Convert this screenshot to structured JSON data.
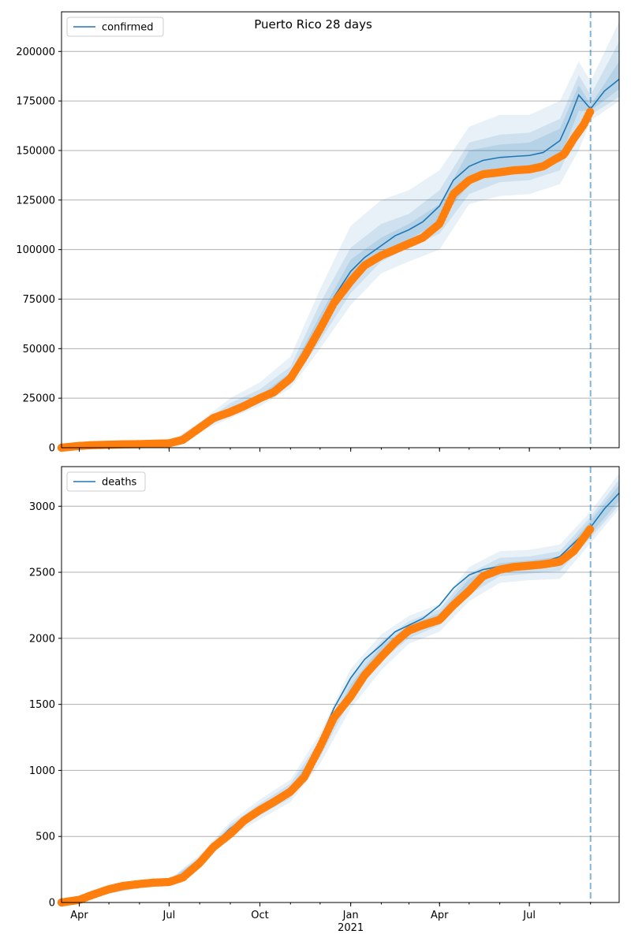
{
  "figure": {
    "title": "Puerto Rico 28 days"
  },
  "colors": {
    "model_line": "#1f77b4",
    "observed_points": "#ff7f0e",
    "band": "#1f77b4",
    "grid": "#b0b0b0",
    "forecast_divider": "#1f77b4"
  },
  "chart_data": [
    {
      "type": "line",
      "title": "Puerto Rico 28 days",
      "xlabel": "",
      "ylabel": "",
      "legend": {
        "placement": "top-left",
        "entries": [
          "confirmed"
        ]
      },
      "grid": {
        "y": true,
        "x": false
      },
      "x_range": [
        "2020-03-14",
        "2021-09-30"
      ],
      "ylim": [
        0,
        220000
      ],
      "yticks": [
        0,
        25000,
        50000,
        75000,
        100000,
        125000,
        150000,
        175000,
        200000
      ],
      "ytick_labels": [
        "0",
        "25000",
        "50000",
        "75000",
        "100000",
        "125000",
        "150000",
        "175000",
        "200000"
      ],
      "forecast_start": "2021-09-01",
      "series": [
        {
          "name": "confirmed",
          "kind": "model",
          "x": [
            "2020-03-14",
            "2020-04-01",
            "2020-05-01",
            "2020-06-01",
            "2020-07-01",
            "2020-07-15",
            "2020-08-01",
            "2020-08-15",
            "2020-09-01",
            "2020-09-15",
            "2020-10-01",
            "2020-10-15",
            "2020-11-01",
            "2020-11-15",
            "2020-12-01",
            "2020-12-15",
            "2021-01-01",
            "2021-01-15",
            "2021-02-01",
            "2021-02-15",
            "2021-03-01",
            "2021-03-15",
            "2021-04-01",
            "2021-04-15",
            "2021-05-01",
            "2021-05-15",
            "2021-06-01",
            "2021-06-15",
            "2021-07-01",
            "2021-07-15",
            "2021-08-01",
            "2021-08-10",
            "2021-08-20",
            "2021-09-01",
            "2021-09-15",
            "2021-09-30"
          ],
          "values": [
            0,
            1000,
            1500,
            1800,
            2200,
            4000,
            10000,
            15000,
            19000,
            22000,
            25000,
            29000,
            36000,
            46000,
            61000,
            76000,
            89000,
            96000,
            102000,
            107000,
            110000,
            114000,
            122000,
            135000,
            142000,
            145000,
            146500,
            147000,
            147500,
            149000,
            155000,
            165000,
            178000,
            171000,
            180000,
            186000
          ]
        },
        {
          "name": "confirmed observed",
          "kind": "observed",
          "x": [
            "2020-03-14",
            "2020-04-01",
            "2020-04-15",
            "2020-05-01",
            "2020-05-15",
            "2020-06-01",
            "2020-06-15",
            "2020-07-01",
            "2020-07-15",
            "2020-08-01",
            "2020-08-15",
            "2020-09-01",
            "2020-09-15",
            "2020-10-01",
            "2020-10-15",
            "2020-11-01",
            "2020-11-15",
            "2020-12-01",
            "2020-12-15",
            "2021-01-01",
            "2021-01-15",
            "2021-02-01",
            "2021-02-15",
            "2021-03-01",
            "2021-03-15",
            "2021-04-01",
            "2021-04-15",
            "2021-05-01",
            "2021-05-15",
            "2021-06-01",
            "2021-06-15",
            "2021-07-01",
            "2021-07-15",
            "2021-07-25",
            "2021-08-05",
            "2021-08-15",
            "2021-08-25",
            "2021-09-01"
          ],
          "values": [
            0,
            900,
            1300,
            1500,
            1700,
            1800,
            2000,
            2200,
            4000,
            10000,
            15000,
            18000,
            21000,
            25000,
            28000,
            35000,
            46000,
            60000,
            73000,
            84000,
            92000,
            97000,
            100000,
            103000,
            106000,
            113000,
            128000,
            135000,
            138000,
            139000,
            140000,
            140500,
            142000,
            145000,
            148000,
            156000,
            163000,
            170000
          ]
        }
      ],
      "bands": [
        {
          "x": [
            "2020-03-14",
            "2020-07-01",
            "2020-08-01",
            "2020-09-01",
            "2020-10-01",
            "2020-11-01",
            "2020-12-01",
            "2021-01-01",
            "2021-02-01",
            "2021-03-01",
            "2021-04-01",
            "2021-05-01",
            "2021-06-01",
            "2021-07-01",
            "2021-08-01",
            "2021-08-20",
            "2021-09-01",
            "2021-09-30"
          ],
          "lower": [
            0,
            1800,
            8000,
            15000,
            21000,
            30000,
            50000,
            72000,
            88000,
            94000,
            100000,
            123000,
            127000,
            128000,
            133000,
            150000,
            165000,
            175000
          ],
          "upper": [
            0,
            2600,
            13000,
            25000,
            33000,
            46000,
            80000,
            112000,
            125000,
            130000,
            140000,
            162000,
            168000,
            168000,
            175000,
            195000,
            185000,
            215000
          ]
        },
        {
          "x": [
            "2020-03-14",
            "2020-07-01",
            "2020-08-01",
            "2020-09-01",
            "2020-10-01",
            "2020-11-01",
            "2020-12-01",
            "2021-01-01",
            "2021-02-01",
            "2021-03-01",
            "2021-04-01",
            "2021-05-01",
            "2021-06-01",
            "2021-07-01",
            "2021-08-01",
            "2021-08-20",
            "2021-09-01",
            "2021-09-30"
          ],
          "lower": [
            0,
            1900,
            8800,
            16500,
            22500,
            32000,
            54000,
            78000,
            94000,
            101000,
            108000,
            128000,
            134000,
            135000,
            140000,
            160000,
            168000,
            177000
          ],
          "upper": [
            0,
            2500,
            11800,
            22500,
            29500,
            41000,
            73000,
            101000,
            113000,
            118000,
            130000,
            154000,
            158000,
            159000,
            166000,
            188000,
            178000,
            205000
          ]
        },
        {
          "x": [
            "2020-03-14",
            "2020-07-01",
            "2020-08-01",
            "2020-09-01",
            "2020-10-01",
            "2020-11-01",
            "2020-12-01",
            "2021-01-01",
            "2021-02-01",
            "2021-03-01",
            "2021-04-01",
            "2021-05-01",
            "2021-06-01",
            "2021-07-01",
            "2021-08-01",
            "2021-08-20",
            "2021-09-01",
            "2021-09-30"
          ],
          "lower": [
            0,
            2000,
            9400,
            17700,
            23800,
            34000,
            57000,
            84000,
            98000,
            105000,
            114000,
            133000,
            140000,
            141000,
            146000,
            170000,
            170000,
            181000
          ],
          "upper": [
            0,
            2400,
            10800,
            20500,
            26500,
            38000,
            67000,
            95000,
            106000,
            113000,
            123000,
            150000,
            153000,
            154000,
            161000,
            183000,
            173000,
            195000
          ]
        }
      ]
    },
    {
      "type": "line",
      "title": "",
      "xlabel": "",
      "ylabel": "",
      "legend": {
        "placement": "top-left",
        "entries": [
          "deaths"
        ]
      },
      "grid": {
        "y": true,
        "x": false
      },
      "x_range": [
        "2020-03-14",
        "2021-09-30"
      ],
      "ylim": [
        0,
        3300
      ],
      "yticks": [
        0,
        500,
        1000,
        1500,
        2000,
        2500,
        3000
      ],
      "ytick_labels": [
        "0",
        "500",
        "1000",
        "1500",
        "2000",
        "2500",
        "3000"
      ],
      "xticks": [
        "2020-04-01",
        "2020-07-01",
        "2020-10-01",
        "2021-01-01",
        "2021-04-01",
        "2021-07-01"
      ],
      "xtick_labels": [
        "Apr",
        "Jul",
        "Oct",
        "Jan",
        "Apr",
        "Jul"
      ],
      "xtick_sublabel": "2021",
      "forecast_start": "2021-09-01",
      "series": [
        {
          "name": "deaths",
          "kind": "model",
          "x": [
            "2020-03-14",
            "2020-04-01",
            "2020-05-01",
            "2020-06-01",
            "2020-07-01",
            "2020-07-15",
            "2020-08-01",
            "2020-08-15",
            "2020-09-01",
            "2020-09-15",
            "2020-10-01",
            "2020-10-15",
            "2020-11-01",
            "2020-11-15",
            "2020-12-01",
            "2020-12-15",
            "2021-01-01",
            "2021-01-15",
            "2021-02-01",
            "2021-02-15",
            "2021-03-01",
            "2021-03-15",
            "2021-04-01",
            "2021-04-15",
            "2021-05-01",
            "2021-05-15",
            "2021-06-01",
            "2021-06-15",
            "2021-07-01",
            "2021-07-15",
            "2021-08-01",
            "2021-08-15",
            "2021-09-01",
            "2021-09-15",
            "2021-09-30"
          ],
          "values": [
            0,
            30,
            110,
            145,
            160,
            200,
            320,
            440,
            560,
            630,
            700,
            780,
            850,
            980,
            1230,
            1470,
            1700,
            1840,
            1950,
            2050,
            2100,
            2150,
            2250,
            2380,
            2480,
            2520,
            2545,
            2555,
            2560,
            2575,
            2620,
            2720,
            2840,
            2980,
            3100
          ]
        },
        {
          "name": "deaths observed",
          "kind": "observed",
          "x": [
            "2020-03-14",
            "2020-04-01",
            "2020-04-15",
            "2020-05-01",
            "2020-05-15",
            "2020-06-01",
            "2020-06-15",
            "2020-07-01",
            "2020-07-15",
            "2020-08-01",
            "2020-08-15",
            "2020-09-01",
            "2020-09-15",
            "2020-10-01",
            "2020-10-15",
            "2020-11-01",
            "2020-11-15",
            "2020-12-01",
            "2020-12-15",
            "2021-01-01",
            "2021-01-15",
            "2021-02-01",
            "2021-02-15",
            "2021-03-01",
            "2021-03-15",
            "2021-04-01",
            "2021-04-15",
            "2021-05-01",
            "2021-05-15",
            "2021-06-01",
            "2021-06-15",
            "2021-07-01",
            "2021-07-15",
            "2021-08-01",
            "2021-08-15",
            "2021-08-25",
            "2021-09-01"
          ],
          "values": [
            0,
            20,
            60,
            100,
            125,
            140,
            150,
            155,
            190,
            300,
            420,
            520,
            620,
            700,
            760,
            840,
            950,
            1180,
            1400,
            1560,
            1720,
            1860,
            1970,
            2060,
            2100,
            2140,
            2250,
            2360,
            2470,
            2520,
            2540,
            2550,
            2560,
            2580,
            2660,
            2760,
            2830
          ]
        }
      ],
      "bands": [
        {
          "x": [
            "2020-03-14",
            "2020-07-01",
            "2020-08-01",
            "2020-09-01",
            "2020-10-01",
            "2020-11-01",
            "2020-12-01",
            "2021-01-01",
            "2021-02-01",
            "2021-03-01",
            "2021-04-01",
            "2021-05-01",
            "2021-06-01",
            "2021-07-01",
            "2021-08-01",
            "2021-09-01",
            "2021-09-30"
          ],
          "lower": [
            0,
            150,
            290,
            500,
            630,
            760,
            1050,
            1470,
            1760,
            1960,
            2050,
            2280,
            2420,
            2440,
            2450,
            2720,
            2980
          ],
          "upper": [
            0,
            175,
            360,
            610,
            780,
            930,
            1280,
            1770,
            2030,
            2170,
            2260,
            2540,
            2660,
            2670,
            2710,
            2960,
            3250
          ]
        },
        {
          "x": [
            "2020-03-14",
            "2020-07-01",
            "2020-08-01",
            "2020-09-01",
            "2020-10-01",
            "2020-11-01",
            "2020-12-01",
            "2021-01-01",
            "2021-02-01",
            "2021-03-01",
            "2021-04-01",
            "2021-05-01",
            "2021-06-01",
            "2021-07-01",
            "2021-08-01",
            "2021-09-01",
            "2021-09-30"
          ],
          "lower": [
            0,
            155,
            300,
            520,
            660,
            790,
            1100,
            1540,
            1830,
            2000,
            2100,
            2330,
            2470,
            2490,
            2510,
            2760,
            3010
          ],
          "upper": [
            0,
            170,
            345,
            590,
            750,
            900,
            1230,
            1700,
            1980,
            2130,
            2220,
            2490,
            2610,
            2620,
            2660,
            2920,
            3200
          ]
        },
        {
          "x": [
            "2020-03-14",
            "2020-07-01",
            "2020-08-01",
            "2020-09-01",
            "2020-10-01",
            "2020-11-01",
            "2020-12-01",
            "2021-01-01",
            "2021-02-01",
            "2021-03-01",
            "2021-04-01",
            "2021-05-01",
            "2021-06-01",
            "2021-07-01",
            "2021-08-01",
            "2021-09-01",
            "2021-09-30"
          ],
          "lower": [
            0,
            158,
            310,
            540,
            680,
            820,
            1150,
            1610,
            1880,
            2040,
            2150,
            2380,
            2510,
            2520,
            2550,
            2790,
            3040
          ],
          "upper": [
            0,
            166,
            335,
            575,
            730,
            870,
            1190,
            1650,
            1940,
            2100,
            2190,
            2450,
            2570,
            2590,
            2620,
            2890,
            3160
          ]
        }
      ]
    }
  ]
}
